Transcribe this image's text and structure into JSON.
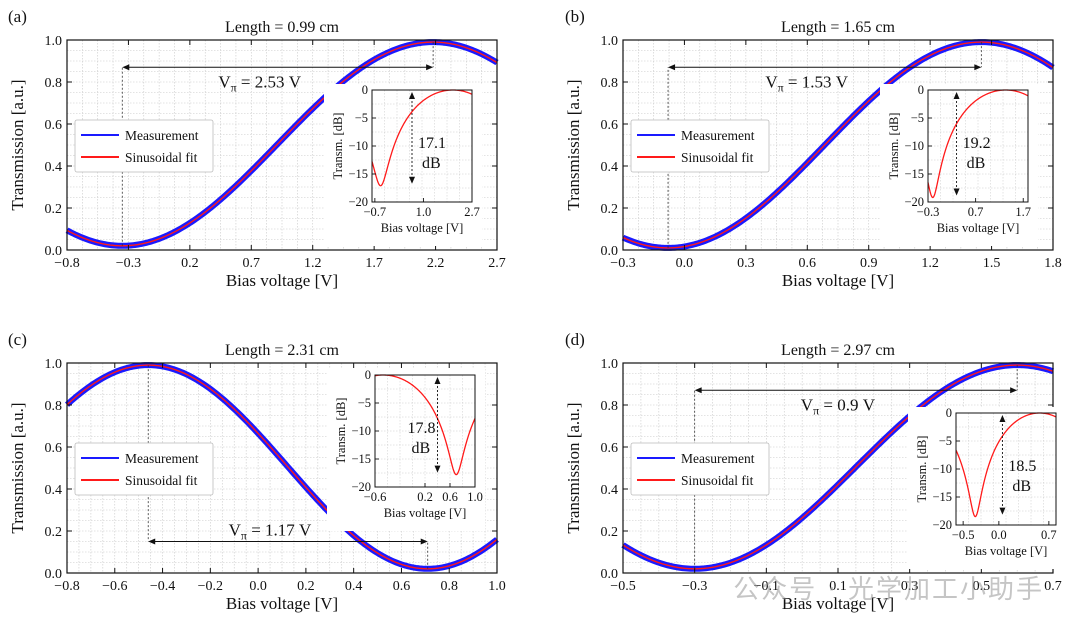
{
  "watermark": "公众号 · 光学加工小助手",
  "legend": {
    "measurement": "Measurement",
    "fit": "Sinusoidal fit"
  },
  "colors": {
    "measurement": "#1a1aff",
    "fit": "#ff1a1a",
    "axis": "#111111",
    "grid": "#c8c8c8"
  },
  "chart_data": [
    {
      "type": "line",
      "panel": "(a)",
      "title": "Length = 0.99 cm",
      "xlabel": "Bias voltage [V]",
      "ylabel": "Transmission [a.u.]",
      "xlim": [
        -0.8,
        2.7
      ],
      "ylim": [
        0,
        1.0
      ],
      "xticks": [
        "−0.8",
        "−0.3",
        "0.2",
        "0.7",
        "1.2",
        "1.7",
        "2.2",
        "2.7"
      ],
      "yticks": [
        "0.0",
        "0.2",
        "0.4",
        "0.6",
        "0.8",
        "1.0"
      ],
      "series": [
        {
          "name": "Measurement",
          "model": "sinusoid",
          "min_at": -0.35,
          "max_at": 2.18,
          "min_value": 0.02,
          "max_value": 0.99
        },
        {
          "name": "Sinusoidal fit",
          "model": "sinusoid",
          "min_at": -0.35,
          "max_at": 2.18,
          "min_value": 0.02,
          "max_value": 0.99
        }
      ],
      "annotation": {
        "label": "Vπ",
        "value": "2.53 V",
        "from": -0.35,
        "to": 2.18,
        "y": 0.87
      },
      "inset": {
        "xlabel": "Bias voltage [V]",
        "ylabel": "Transm. [dB]",
        "xlim": [
          -0.8,
          2.7
        ],
        "ylim": [
          -20,
          0
        ],
        "xticks": [
          "−0.7",
          "1.0",
          "2.7"
        ],
        "yticks": [
          "0",
          "−5",
          "−10",
          "−15",
          "−20"
        ],
        "dip_at": -0.5,
        "dip_db": -17.1,
        "marker_x": 0.6,
        "label_value": "17.1",
        "label_unit": "dB"
      }
    },
    {
      "type": "line",
      "panel": "(b)",
      "title": "Length = 1.65 cm",
      "xlabel": "Bias voltage [V]",
      "ylabel": "Transmission [a.u.]",
      "xlim": [
        -0.3,
        1.8
      ],
      "ylim": [
        0,
        1.0
      ],
      "xticks": [
        "−0.3",
        "0.0",
        "0.3",
        "0.6",
        "0.9",
        "1.2",
        "1.5",
        "1.8"
      ],
      "yticks": [
        "0.0",
        "0.2",
        "0.4",
        "0.6",
        "0.8",
        "1.0"
      ],
      "series": [
        {
          "name": "Measurement",
          "model": "sinusoid",
          "min_at": -0.08,
          "max_at": 1.45,
          "min_value": 0.01,
          "max_value": 0.99
        },
        {
          "name": "Sinusoidal fit",
          "model": "sinusoid",
          "min_at": -0.08,
          "max_at": 1.45,
          "min_value": 0.01,
          "max_value": 0.99
        }
      ],
      "annotation": {
        "label": "Vπ",
        "value": "1.53 V",
        "from": -0.08,
        "to": 1.45,
        "y": 0.87
      },
      "inset": {
        "xlabel": "Bias voltage [V]",
        "ylabel": "Transm. [dB]",
        "xlim": [
          -0.3,
          1.8
        ],
        "ylim": [
          -20,
          0
        ],
        "xticks": [
          "−0.3",
          "0.7",
          "1.7"
        ],
        "yticks": [
          "0",
          "−5",
          "−10",
          "−15",
          "−20"
        ],
        "dip_at": -0.2,
        "dip_db": -19.2,
        "marker_x": 0.3,
        "label_value": "19.2",
        "label_unit": "dB"
      }
    },
    {
      "type": "line",
      "panel": "(c)",
      "title": "Length = 2.31 cm",
      "xlabel": "Bias voltage [V]",
      "ylabel": "Transmission [a.u.]",
      "xlim": [
        -0.8,
        1.0
      ],
      "ylim": [
        0,
        1.0
      ],
      "xticks": [
        "−0.8",
        "−0.6",
        "−0.4",
        "−0.2",
        "0.0",
        "0.2",
        "0.4",
        "0.6",
        "0.8",
        "1.0"
      ],
      "yticks": [
        "0.0",
        "0.2",
        "0.4",
        "0.6",
        "0.8",
        "1.0"
      ],
      "series": [
        {
          "name": "Measurement",
          "model": "sinusoid",
          "min_at": 0.71,
          "max_at": -0.46,
          "min_value": 0.02,
          "max_value": 0.99
        },
        {
          "name": "Sinusoidal fit",
          "model": "sinusoid",
          "min_at": 0.71,
          "max_at": -0.46,
          "min_value": 0.02,
          "max_value": 0.99
        }
      ],
      "annotation": {
        "label": "Vπ",
        "value": "1.17 V",
        "from": -0.46,
        "to": 0.71,
        "y": 0.15
      },
      "inset": {
        "xlabel": "Bias voltage [V]",
        "ylabel": "Transm. [dB]",
        "xlim": [
          -0.6,
          1.0
        ],
        "ylim": [
          -20,
          0
        ],
        "xticks": [
          "−0.6",
          "0.2",
          "0.6",
          "1.0"
        ],
        "yticks": [
          "0",
          "−5",
          "−10",
          "−15",
          "−20"
        ],
        "dip_at": 0.7,
        "dip_db": -17.8,
        "marker_x": 0.4,
        "label_value": "17.8",
        "label_unit": "dB"
      }
    },
    {
      "type": "line",
      "panel": "(d)",
      "title": "Length = 2.97 cm",
      "xlabel": "Bias voltage [V]",
      "ylabel": "Transmission [a.u.]",
      "xlim": [
        -0.5,
        0.7
      ],
      "ylim": [
        0,
        1.0
      ],
      "xticks": [
        "−0.5",
        "−0.3",
        "−0.1",
        "0.1",
        "0.3",
        "0.5",
        "0.7"
      ],
      "yticks": [
        "0.0",
        "0.2",
        "0.4",
        "0.6",
        "0.8",
        "1.0"
      ],
      "series": [
        {
          "name": "Measurement",
          "model": "sinusoid",
          "min_at": -0.3,
          "max_at": 0.6,
          "min_value": 0.02,
          "max_value": 0.99
        },
        {
          "name": "Sinusoidal fit",
          "model": "sinusoid",
          "min_at": -0.3,
          "max_at": 0.6,
          "min_value": 0.02,
          "max_value": 0.99
        }
      ],
      "annotation": {
        "label": "Vπ",
        "value": "0.9 V",
        "from": -0.3,
        "to": 0.6,
        "y": 0.87
      },
      "inset": {
        "xlabel": "Bias voltage [V]",
        "ylabel": "Transm. [dB]",
        "xlim": [
          -0.6,
          0.8
        ],
        "ylim": [
          -20,
          0
        ],
        "xticks": [
          "−0.5",
          "0.0",
          "0.7"
        ],
        "yticks": [
          "0",
          "−5",
          "−10",
          "−15",
          "−20"
        ],
        "dip_at": -0.33,
        "dip_db": -18.5,
        "marker_x": 0.05,
        "label_value": "18.5",
        "label_unit": "dB"
      }
    }
  ]
}
